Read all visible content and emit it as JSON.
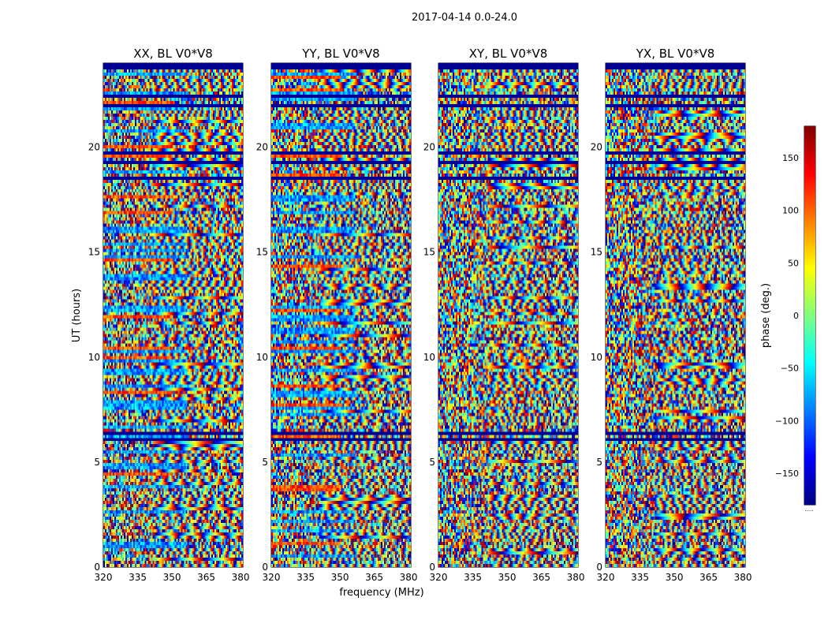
{
  "figure": {
    "suptitle": "2017-04-14 0.0-24.0"
  },
  "chart_data": {
    "type": "heatmap",
    "shared": {
      "xlabel": "frequency (MHz)",
      "ylabel": "UT (hours)",
      "xlim": [
        320,
        381
      ],
      "ylim": [
        0,
        24
      ],
      "xticks": [
        320,
        335,
        350,
        365,
        380
      ],
      "yticks": [
        0,
        5,
        10,
        15,
        20
      ],
      "colormap": "jet",
      "grid": false
    },
    "panels": [
      {
        "title": "XX, BL V0*V8"
      },
      {
        "title": "YY, BL V0*V8"
      },
      {
        "title": "XY, BL V0*V8"
      },
      {
        "title": "YX, BL V0*V8"
      }
    ],
    "colorbar": {
      "label": "phase (deg.)",
      "vmin": -180,
      "vmax": 180,
      "ticks": [
        -150,
        -100,
        -50,
        0,
        50,
        100,
        150
      ],
      "tick_labels": [
        "−150",
        "−100",
        "−50",
        "0",
        "50",
        "100",
        "150"
      ],
      "extra_label": "....."
    }
  }
}
